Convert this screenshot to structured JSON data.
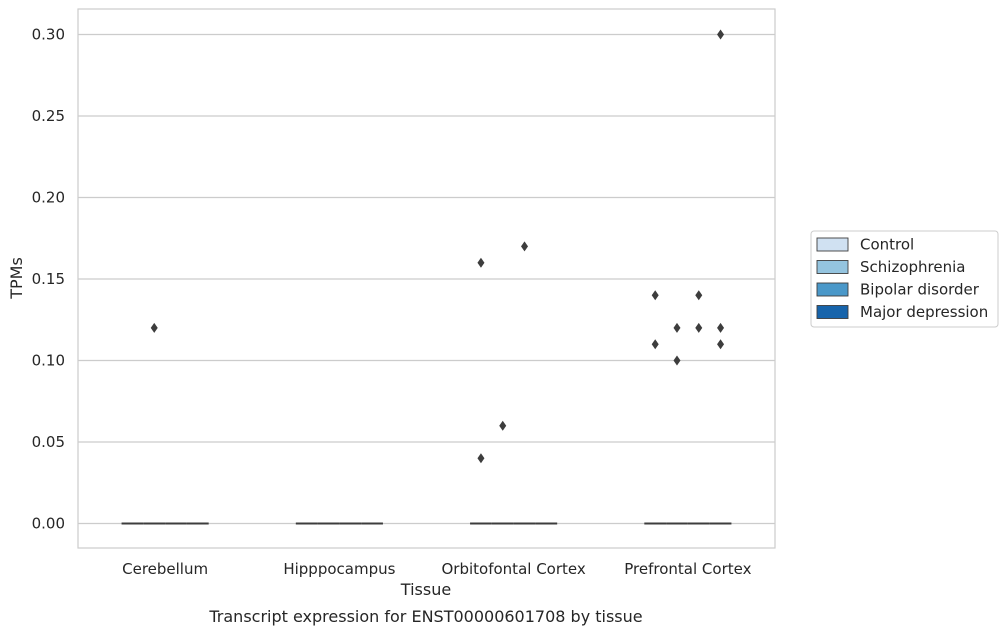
{
  "chart_data": {
    "type": "box",
    "title": "",
    "caption": "Transcript expression for ENST00000601708 by tissue",
    "xlabel": "Tissue",
    "ylabel": "TPMs",
    "ylim": [
      -0.015,
      0.315
    ],
    "yticks": [
      "0.00",
      "0.05",
      "0.10",
      "0.15",
      "0.20",
      "0.25",
      "0.30"
    ],
    "grid": "horizontal",
    "legend_position": "right",
    "categories": [
      "Cerebellum",
      "Hipppocampus",
      "Orbitofontal Cortex",
      "Prefrontal Cortex"
    ],
    "series": [
      {
        "name": "Control",
        "color": "#d0e1f2",
        "medians": [
          0,
          0,
          0,
          0
        ],
        "outliers": [
          [],
          [],
          [
            0.16,
            0.04
          ],
          [
            0.14,
            0.11
          ]
        ]
      },
      {
        "name": "Schizophrenia",
        "color": "#94c4df",
        "medians": [
          0,
          0,
          0,
          0
        ],
        "outliers": [
          [
            0.12
          ],
          [],
          [
            0.06
          ],
          [
            0.12,
            0.1
          ]
        ]
      },
      {
        "name": "Bipolar disorder",
        "color": "#4a98c9",
        "medians": [
          0,
          0,
          0,
          0
        ],
        "outliers": [
          [],
          [],
          [
            0.17
          ],
          [
            0.14,
            0.12
          ]
        ]
      },
      {
        "name": "Major depression",
        "color": "#1764ab",
        "medians": [
          0,
          0,
          0,
          0
        ],
        "outliers": [
          [],
          [],
          [],
          [
            0.3,
            0.12,
            0.11
          ]
        ]
      }
    ]
  }
}
